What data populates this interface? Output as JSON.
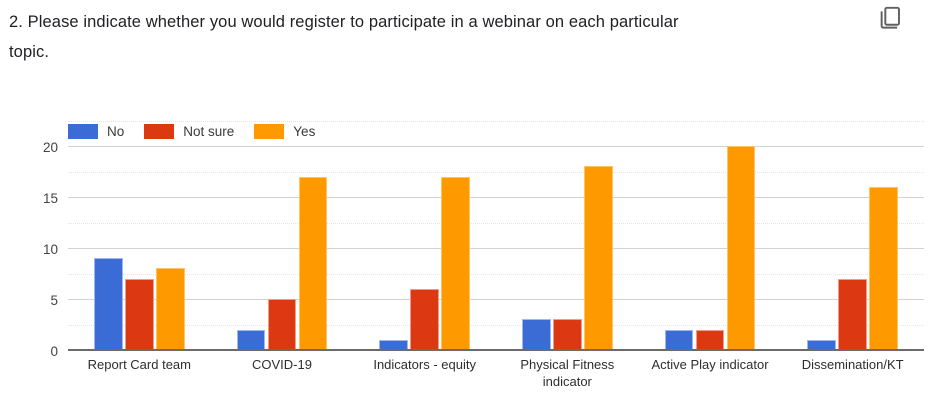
{
  "header": {
    "title": "2. Please indicate whether you would register to participate in a webinar on each particular topic.",
    "title_lines": [
      "2. Please indicate whether you would register to participate in a webinar on each particular",
      "topic."
    ],
    "copy_icon": "copy-chart-icon"
  },
  "chart_data": {
    "type": "bar",
    "title": "2. Please indicate whether you would register to participate in a webinar on each particular topic.",
    "categories": [
      "Report Card team",
      "COVID-19",
      "Indicators - equity",
      "Physical Fitness indicator",
      "Active Play indicator",
      "Dissemination/KT"
    ],
    "series": [
      {
        "name": "No",
        "color": "#3b6cd5",
        "stroke": "#9db9ee",
        "values": [
          9,
          2,
          1,
          3,
          2,
          1
        ]
      },
      {
        "name": "Not sure",
        "color": "#dc3912",
        "stroke": "#ee9c8b",
        "values": [
          7,
          5,
          6,
          3,
          2,
          7
        ]
      },
      {
        "name": "Yes",
        "color": "#ff9900",
        "stroke": "#ffc266",
        "values": [
          8,
          17,
          17,
          18,
          20,
          16
        ]
      }
    ],
    "xlabel": "",
    "ylabel": "",
    "ylim": [
      0,
      20
    ],
    "yticks": [
      0,
      5,
      10,
      15,
      20
    ],
    "minor_gridlines": [
      2.5,
      7.5,
      12.5,
      17.5,
      22.5
    ],
    "grid": true,
    "legend_position": "top"
  },
  "colors": {
    "axis_line": "#6b6b6b",
    "major_gridline": "#d2d2d2",
    "minor_gridline": "#e4e4e4",
    "tick_text": "#444444",
    "category_text": "#2e2e2e",
    "title_text": "#202124",
    "icon_gray": "#616161"
  }
}
